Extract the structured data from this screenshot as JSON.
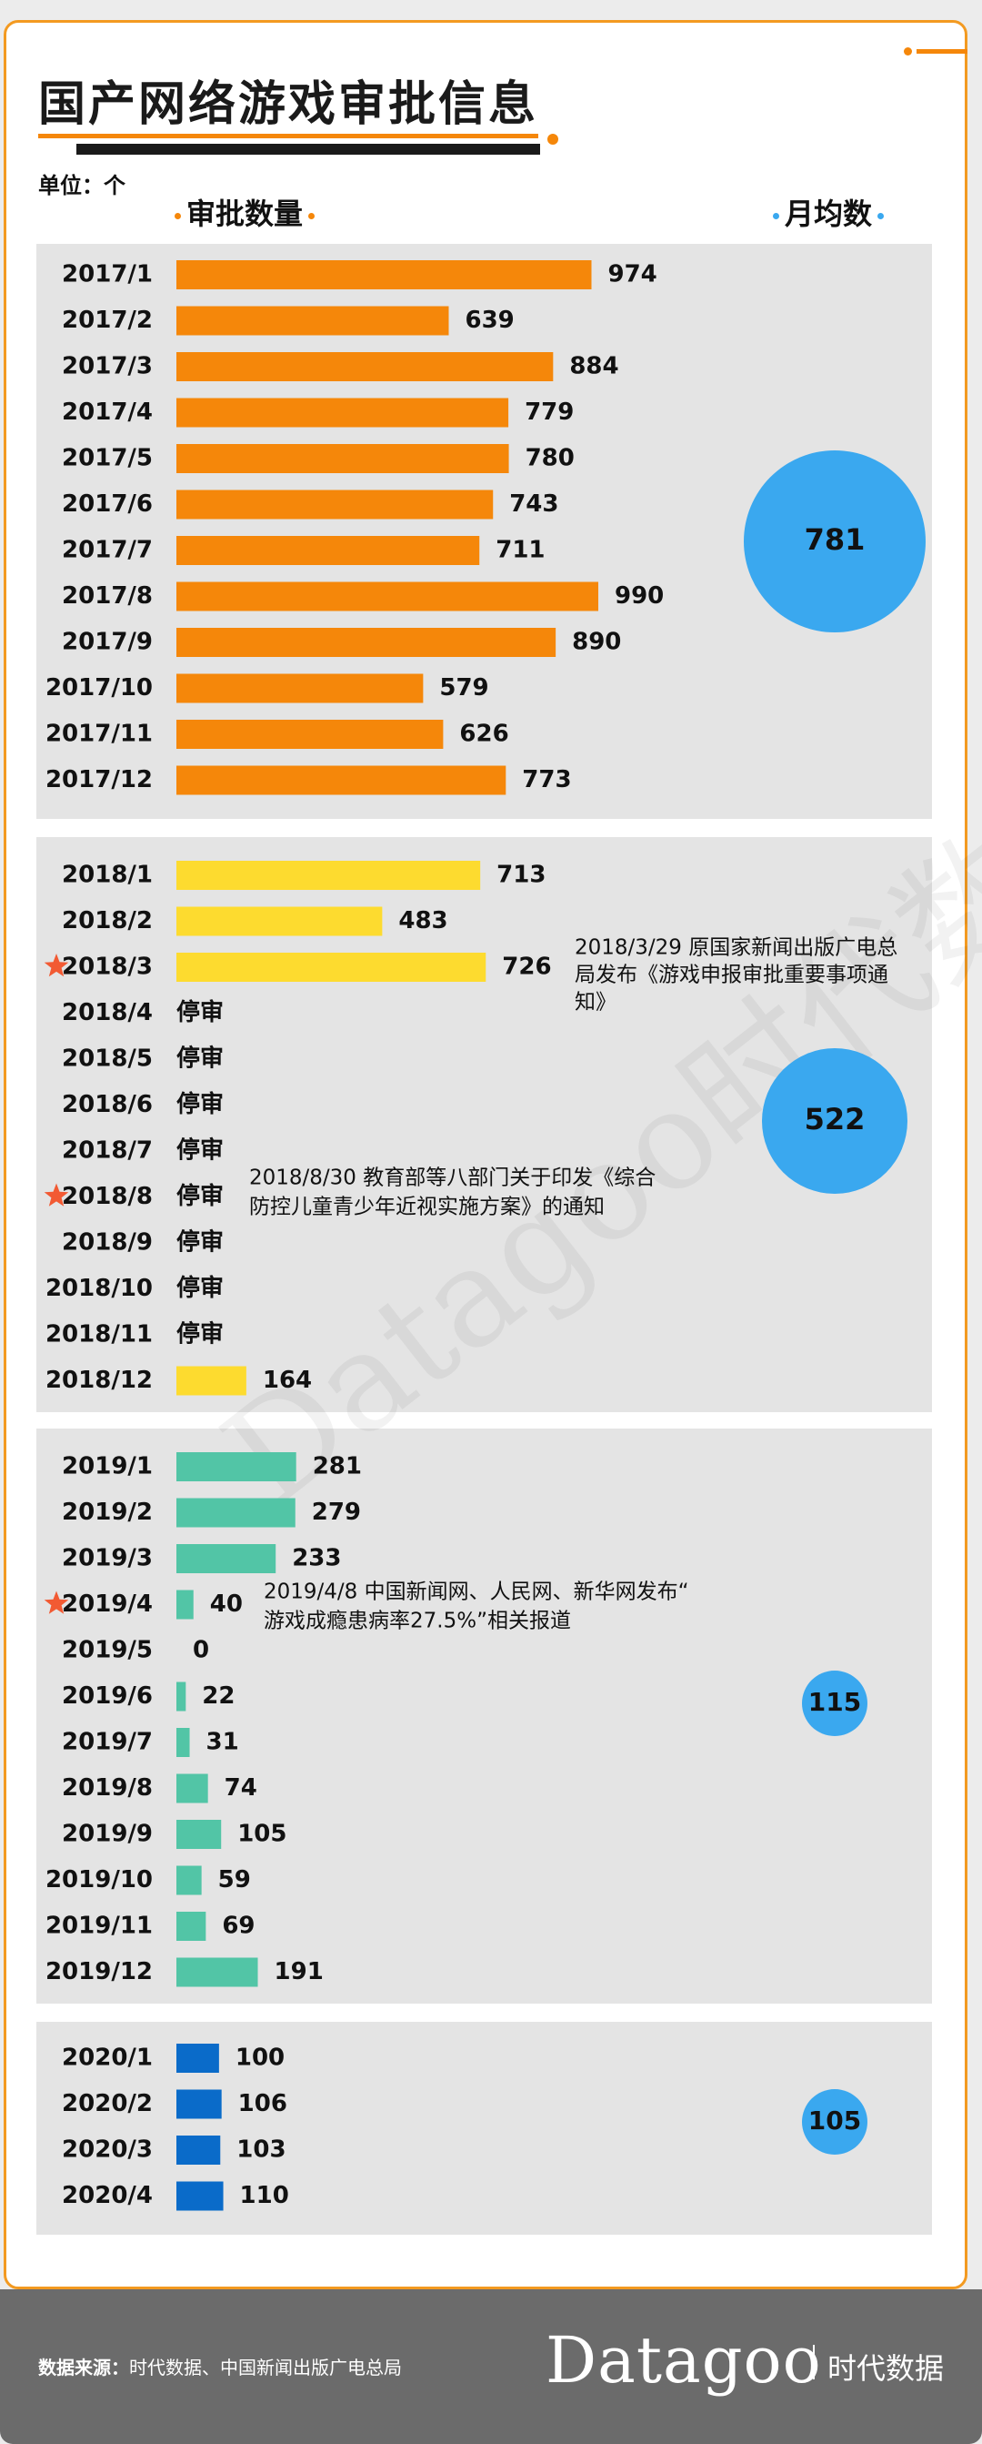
{
  "title": "国产网络游戏审批信息",
  "unit_label": "单位：个",
  "column_headers": {
    "approvals": "审批数量",
    "monthly_avg": "月均数"
  },
  "colors": {
    "2017": "#f5870a",
    "2018": "#fddb2f",
    "2019": "#52c5a6",
    "2020": "#0a6bc9",
    "avg_circle": "#3aa8ef",
    "star": "#f25a33"
  },
  "suspended_label": "停审",
  "chart_data": {
    "type": "bar",
    "orientation": "horizontal",
    "groups": [
      {
        "year": "2017",
        "average": 781,
        "categories": [
          "2017/1",
          "2017/2",
          "2017/3",
          "2017/4",
          "2017/5",
          "2017/6",
          "2017/7",
          "2017/8",
          "2017/9",
          "2017/10",
          "2017/11",
          "2017/12"
        ],
        "values": [
          974,
          639,
          884,
          779,
          780,
          743,
          711,
          990,
          890,
          579,
          626,
          773
        ]
      },
      {
        "year": "2018",
        "average": 522,
        "categories": [
          "2018/1",
          "2018/2",
          "2018/3",
          "2018/4",
          "2018/5",
          "2018/6",
          "2018/7",
          "2018/8",
          "2018/9",
          "2018/10",
          "2018/11",
          "2018/12"
        ],
        "values": [
          713,
          483,
          726,
          null,
          null,
          null,
          null,
          null,
          null,
          null,
          null,
          164
        ]
      },
      {
        "year": "2019",
        "average": 115,
        "categories": [
          "2019/1",
          "2019/2",
          "2019/3",
          "2019/4",
          "2019/5",
          "2019/6",
          "2019/7",
          "2019/8",
          "2019/9",
          "2019/10",
          "2019/11",
          "2019/12"
        ],
        "values": [
          281,
          279,
          233,
          40,
          0,
          22,
          31,
          74,
          105,
          59,
          69,
          191
        ]
      },
      {
        "year": "2020",
        "average": 105,
        "categories": [
          "2020/1",
          "2020/2",
          "2020/3",
          "2020/4"
        ],
        "values": [
          100,
          106,
          103,
          110
        ]
      }
    ],
    "annotations": [
      {
        "month": "2018/3",
        "lines": [
          "2018/3/29 原国家新闻出版广电总",
          "局发布《游戏申报审批重要事项通",
          "知》"
        ]
      },
      {
        "month": "2018/8",
        "lines": [
          "2018/8/30 教育部等八部门关于印发《综合",
          "防控儿童青少年近视实施方案》的通知"
        ]
      },
      {
        "month": "2019/4",
        "lines": [
          "2019/4/8 中国新闻网、人民网、新华网发布“",
          "游戏成瘾患病率27.5%”相关报道"
        ]
      }
    ]
  },
  "footer": {
    "source_label": "数据来源：",
    "source_text": "时代数据、中国新闻出版广电总局",
    "brand": "Datagoo",
    "brand_cn": "时代数据"
  }
}
